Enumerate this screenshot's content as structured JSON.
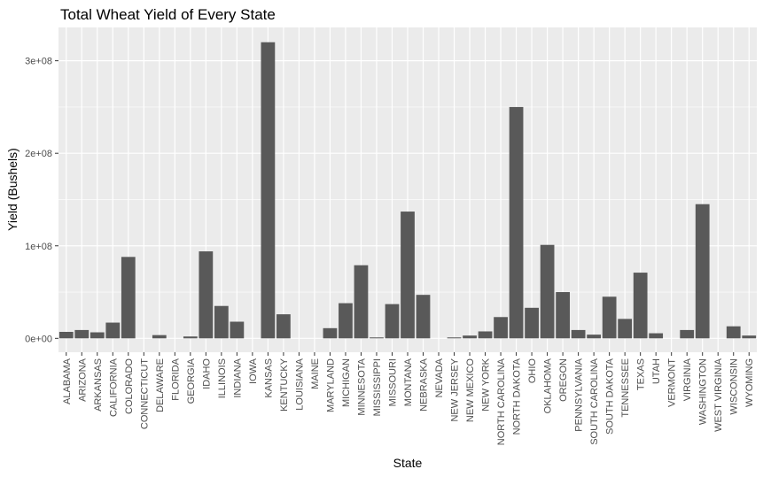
{
  "chart_data": {
    "type": "bar",
    "title": "Total Wheat Yield of Every State",
    "xlabel": "State",
    "ylabel": "Yield (Bushels)",
    "ylim": [
      -15000000,
      336000000
    ],
    "yticks": [
      0,
      100000000,
      200000000,
      300000000
    ],
    "ytick_labels": [
      "0e+00",
      "1e+08",
      "2e+08",
      "3e+08"
    ],
    "grid": true,
    "bar_color": "#595959",
    "panel_color": "#ebebeb",
    "categories": [
      "ALABAMA",
      "ARIZONA",
      "ARKANSAS",
      "CALIFORNIA",
      "COLORADO",
      "CONNECTICUT",
      "DELAWARE",
      "FLORIDA",
      "GEORGIA",
      "IDAHO",
      "ILLINOIS",
      "INDIANA",
      "IOWA",
      "KANSAS",
      "KENTUCKY",
      "LOUISIANA",
      "MAINE",
      "MARYLAND",
      "MICHIGAN",
      "MINNESOTA",
      "MISSISSIPPI",
      "MISSOURI",
      "MONTANA",
      "NEBRASKA",
      "NEVADA",
      "NEW JERSEY",
      "NEW MEXICO",
      "NEW YORK",
      "NORTH CAROLINA",
      "NORTH DAKOTA",
      "OHIO",
      "OKLAHOMA",
      "OREGON",
      "PENNSYLVANIA",
      "SOUTH CAROLINA",
      "SOUTH DAKOTA",
      "TENNESSEE",
      "TEXAS",
      "UTAH",
      "VERMONT",
      "VIRGINIA",
      "WASHINGTON",
      "WEST VIRGINIA",
      "WISCONSIN",
      "WYOMING"
    ],
    "values": [
      7000000,
      9000000,
      6500000,
      17000000,
      88000000,
      0,
      3500000,
      0,
      2000000,
      94000000,
      35000000,
      18000000,
      0,
      320000000,
      26000000,
      0,
      0,
      11000000,
      38000000,
      79000000,
      1000000,
      37000000,
      137000000,
      47000000,
      0,
      1000000,
      3000000,
      7500000,
      23000000,
      250000000,
      33000000,
      101000000,
      50000000,
      9000000,
      4000000,
      45000000,
      21000000,
      71000000,
      5500000,
      0,
      9000000,
      145000000,
      0,
      13000000,
      3000000
    ]
  }
}
